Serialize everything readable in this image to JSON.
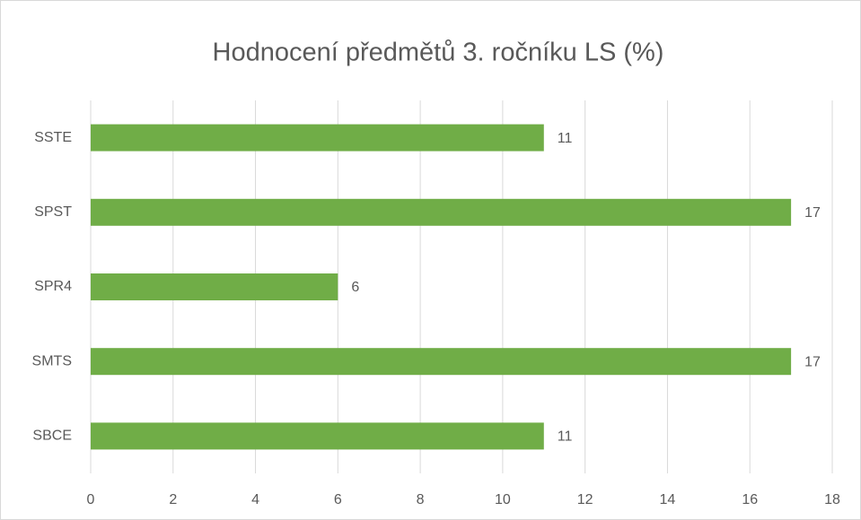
{
  "chart_data": {
    "type": "bar",
    "orientation": "horizontal",
    "title": "Hodnocení předmětů 3. ročníku LS (%)",
    "categories": [
      "SSTE",
      "SPST",
      "SPR4",
      "SMTS",
      "SBCE"
    ],
    "values": [
      11,
      17,
      6,
      17,
      11
    ],
    "color": "#70ad47",
    "xlim": [
      0,
      18
    ],
    "xticks": [
      0,
      2,
      4,
      6,
      8,
      10,
      12,
      14,
      16,
      18
    ],
    "grid": true,
    "data_labels": true
  }
}
